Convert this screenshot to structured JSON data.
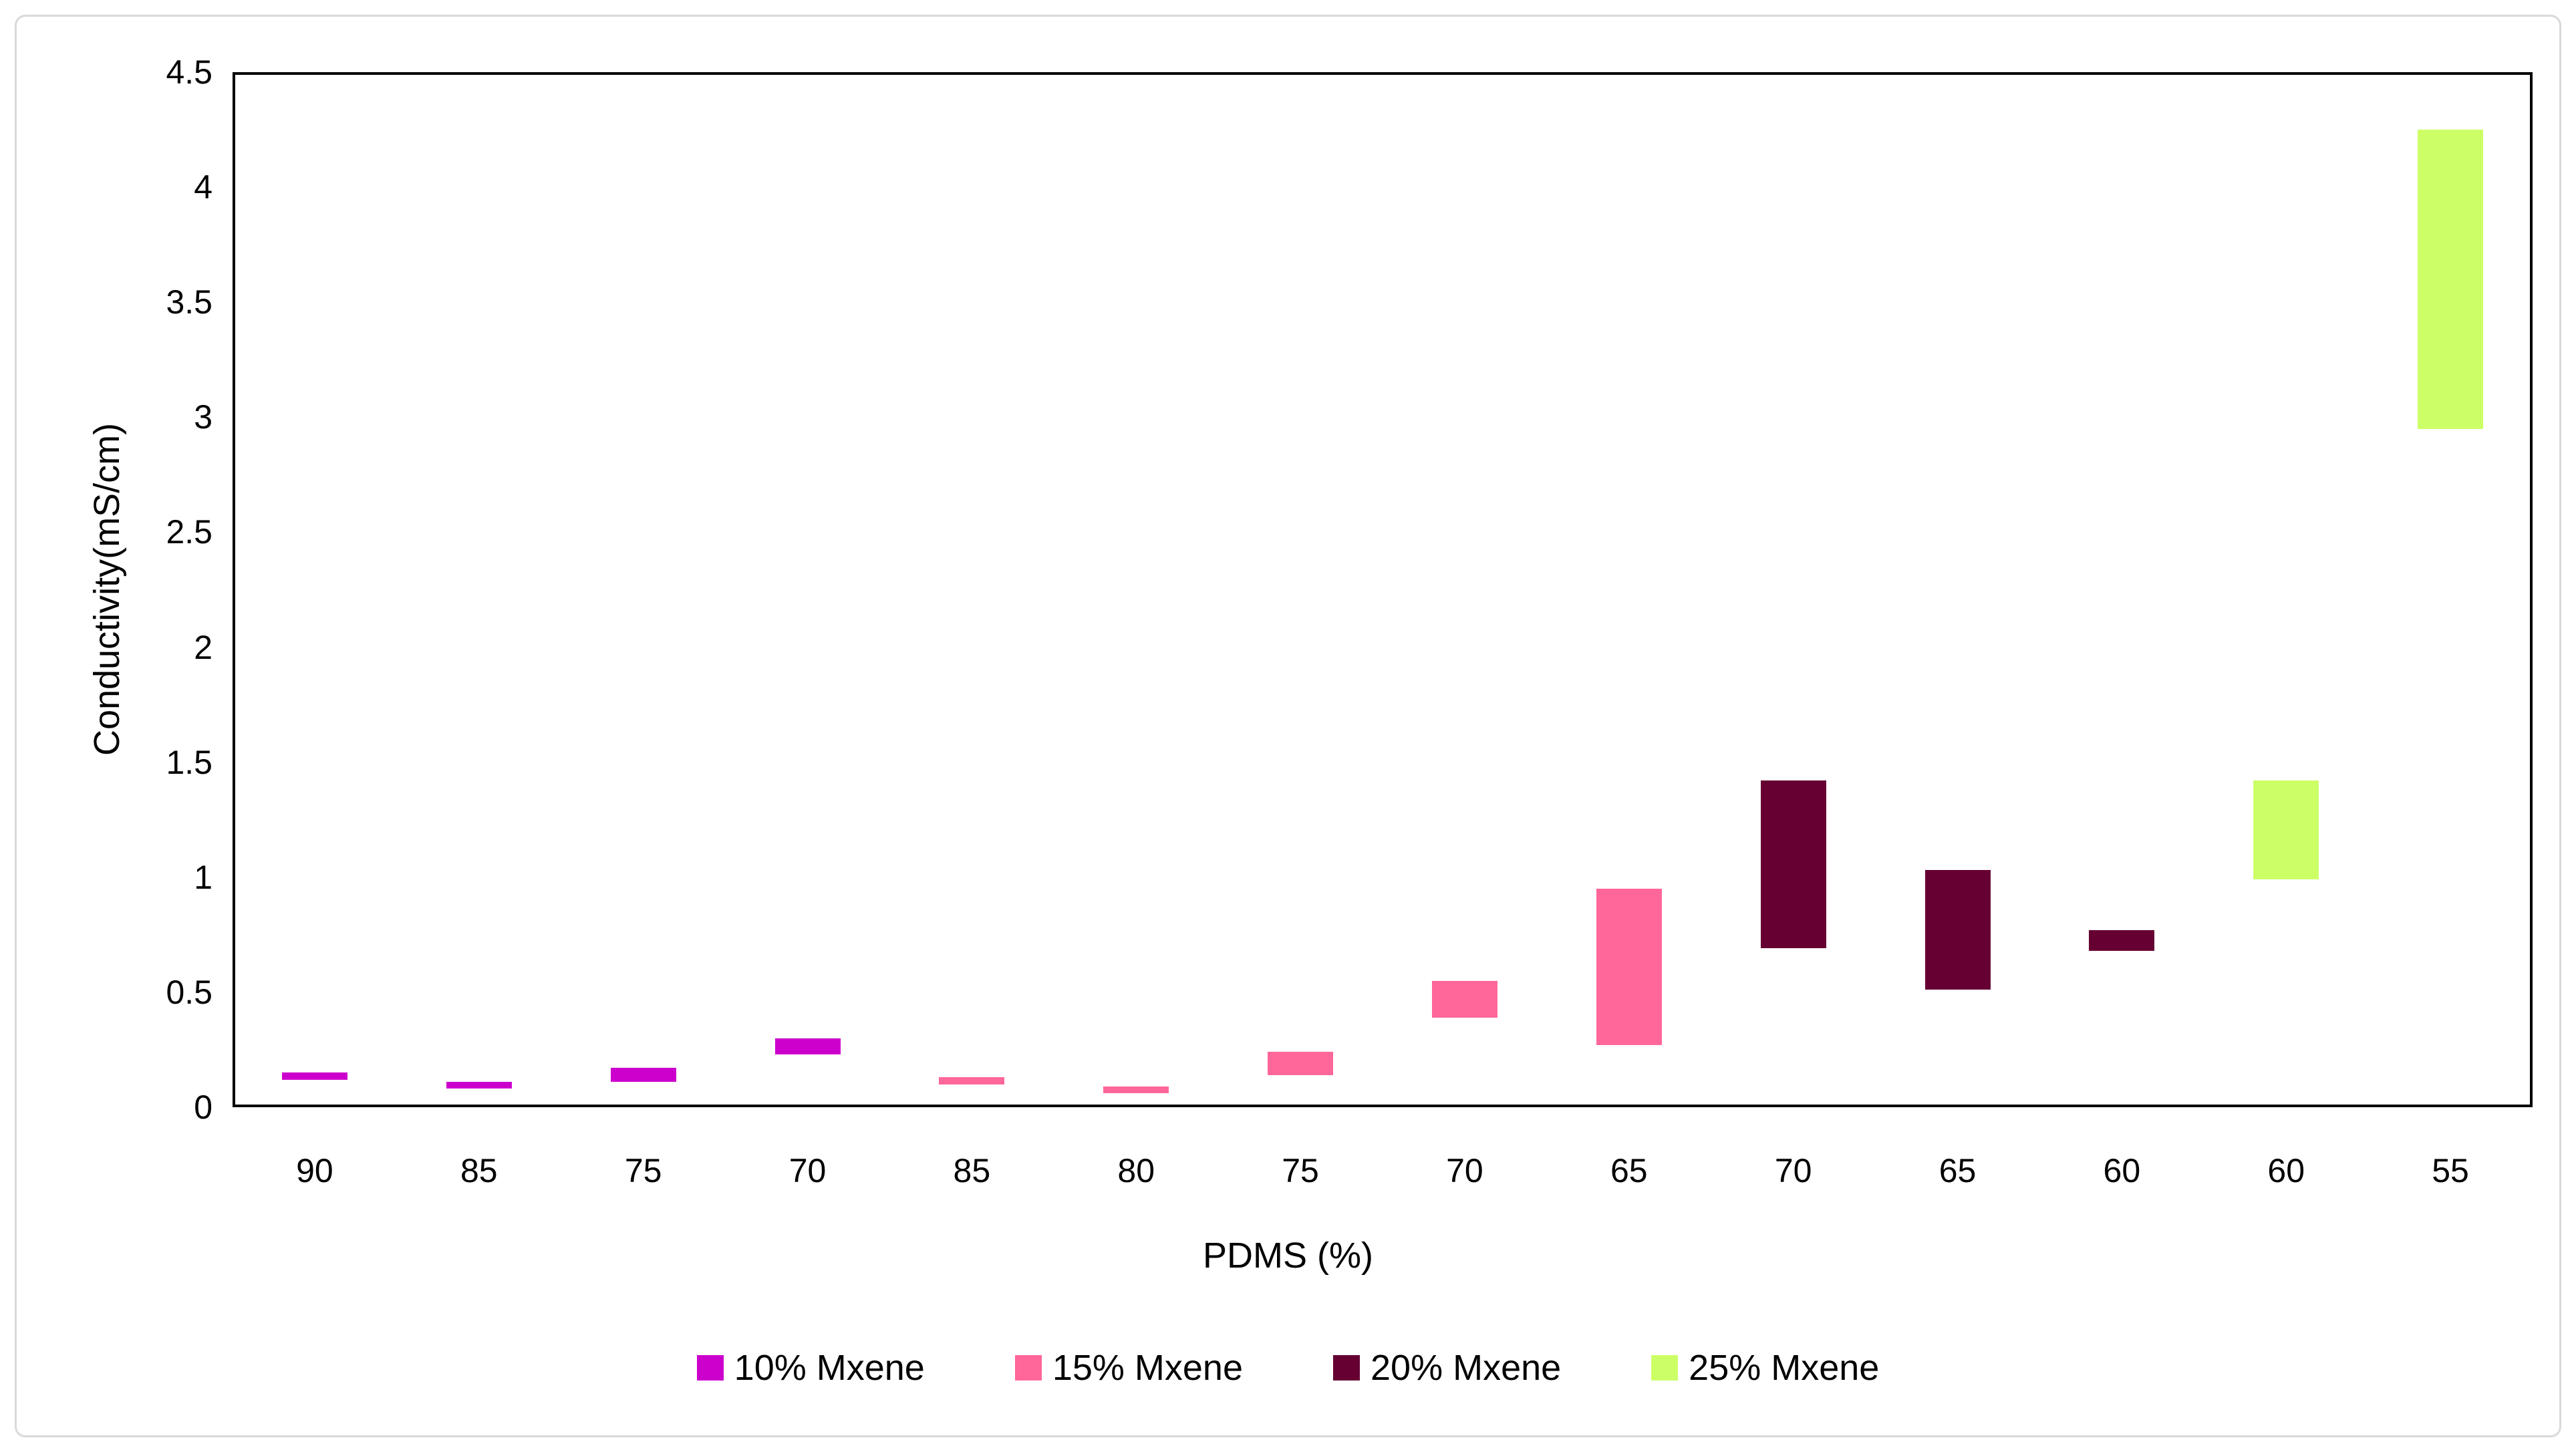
{
  "chart_data": {
    "type": "bar",
    "subtype": "floating_range_columns",
    "title": "",
    "xlabel": "PDMS (%)",
    "ylabel": "Conductivity(mS/cm)",
    "ylim": [
      0,
      4.5
    ],
    "ytick_labels": [
      "0",
      "0.5",
      "1",
      "1.5",
      "2",
      "2.5",
      "3",
      "3.5",
      "4",
      "4.5"
    ],
    "categories": [
      "90",
      "85",
      "75",
      "70",
      "85",
      "80",
      "75",
      "70",
      "65",
      "70",
      "65",
      "60",
      "60",
      "55"
    ],
    "grid": false,
    "legend_position": "bottom",
    "series": [
      {
        "name": "10% Mxene",
        "color": "#CC00CC",
        "bars": [
          {
            "category_index": 0,
            "category": "90",
            "low": 0.12,
            "high": 0.15
          },
          {
            "category_index": 1,
            "category": "85",
            "low": 0.08,
            "high": 0.11
          },
          {
            "category_index": 2,
            "category": "75",
            "low": 0.11,
            "high": 0.17
          },
          {
            "category_index": 3,
            "category": "70",
            "low": 0.23,
            "high": 0.3
          }
        ]
      },
      {
        "name": "15% Mxene",
        "color": "#FF6699",
        "bars": [
          {
            "category_index": 4,
            "category": "85",
            "low": 0.1,
            "high": 0.13
          },
          {
            "category_index": 5,
            "category": "80",
            "low": 0.06,
            "high": 0.09
          },
          {
            "category_index": 6,
            "category": "75",
            "low": 0.14,
            "high": 0.24
          },
          {
            "category_index": 7,
            "category": "70",
            "low": 0.39,
            "high": 0.55
          },
          {
            "category_index": 8,
            "category": "65",
            "low": 0.27,
            "high": 0.95
          }
        ]
      },
      {
        "name": "20% Mxene",
        "color": "#660033",
        "bars": [
          {
            "category_index": 9,
            "category": "70",
            "low": 0.69,
            "high": 1.42
          },
          {
            "category_index": 10,
            "category": "65",
            "low": 0.51,
            "high": 1.03
          },
          {
            "category_index": 11,
            "category": "60",
            "low": 0.68,
            "high": 0.77
          }
        ]
      },
      {
        "name": "25% Mxene",
        "color": "#CCFF66",
        "bars": [
          {
            "category_index": 12,
            "category": "60",
            "low": 0.99,
            "high": 1.42
          },
          {
            "category_index": 13,
            "category": "55",
            "low": 2.95,
            "high": 4.25
          }
        ]
      }
    ]
  }
}
